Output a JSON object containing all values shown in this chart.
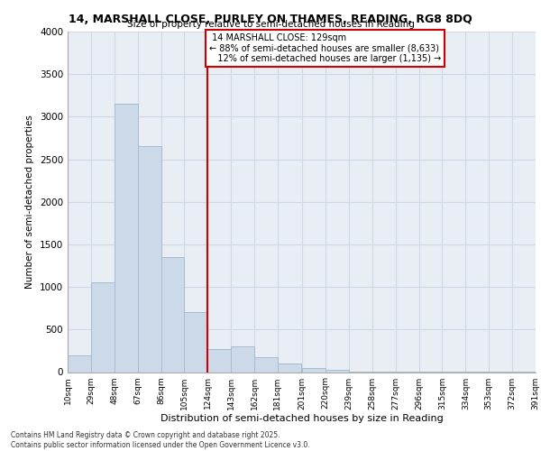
{
  "title": "14, MARSHALL CLOSE, PURLEY ON THAMES, READING, RG8 8DQ",
  "subtitle": "Size of property relative to semi-detached houses in Reading",
  "xlabel": "Distribution of semi-detached houses by size in Reading",
  "ylabel": "Number of semi-detached properties",
  "property_label": "14 MARSHALL CLOSE: 129sqm",
  "pct_smaller": 88,
  "count_smaller": "8,633",
  "pct_larger": 12,
  "count_larger": "1,135",
  "bin_edges": [
    10,
    29,
    48,
    67,
    86,
    105,
    124,
    143,
    162,
    181,
    201,
    220,
    239,
    258,
    277,
    296,
    315,
    334,
    353,
    372,
    391
  ],
  "bar_heights": [
    200,
    1050,
    3150,
    2650,
    1350,
    700,
    270,
    300,
    175,
    100,
    50,
    30,
    10,
    5,
    3,
    2,
    1,
    1,
    1,
    1
  ],
  "bar_color": "#ccd9e8",
  "bar_edge_color": "#aabbd0",
  "line_color": "#cc0000",
  "annotation_box_color": "#cc0000",
  "grid_color": "#d0d8e4",
  "background_color": "#e8eef4",
  "ylim": [
    0,
    4000
  ],
  "yticks": [
    0,
    500,
    1000,
    1500,
    2000,
    2500,
    3000,
    3500,
    4000
  ],
  "tick_labels": [
    "10sqm",
    "29sqm",
    "48sqm",
    "67sqm",
    "86sqm",
    "105sqm",
    "124sqm",
    "143sqm",
    "162sqm",
    "181sqm",
    "201sqm",
    "220sqm",
    "239sqm",
    "258sqm",
    "277sqm",
    "296sqm",
    "315sqm",
    "334sqm",
    "353sqm",
    "372sqm",
    "391sqm"
  ],
  "footer_line1": "Contains HM Land Registry data © Crown copyright and database right 2025.",
  "footer_line2": "Contains public sector information licensed under the Open Government Licence v3.0."
}
